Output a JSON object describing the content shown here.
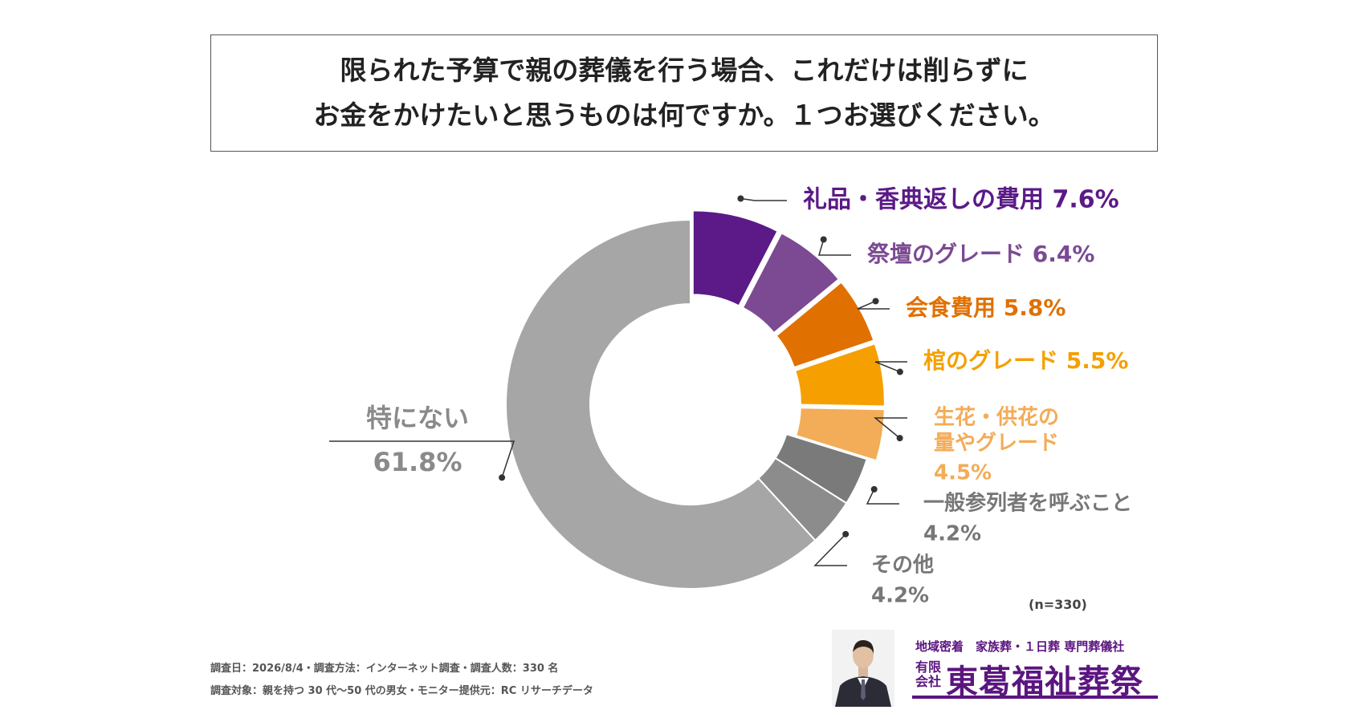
{
  "question": {
    "line1": "限られた予算で親の葬儀を行う場合、これだけは削らずに",
    "line2": "お金をかけたいと思うものは何ですか。１つお選びください。"
  },
  "chart_data": {
    "type": "pie",
    "style": "donut",
    "slices": [
      {
        "label": "礼品・香典返しの費用",
        "value": 7.6,
        "value_label": "7.6%",
        "color": "#5b1a87"
      },
      {
        "label": "祭壇のグレード",
        "value": 6.4,
        "value_label": "6.4%",
        "color": "#7b4a93"
      },
      {
        "label": "会食費用",
        "value": 5.8,
        "value_label": "5.8%",
        "color": "#e07000"
      },
      {
        "label": "棺のグレード",
        "value": 5.5,
        "value_label": "5.5%",
        "color": "#f5a000"
      },
      {
        "label": "生花・供花の量やグレード",
        "label_lines": [
          "生花・供花の",
          "量やグレード"
        ],
        "value": 4.5,
        "value_label": "4.5%",
        "color": "#f3ac57"
      },
      {
        "label": "一般参列者を呼ぶこと",
        "value": 4.2,
        "value_label": "4.2%",
        "color": "#7a7a7a"
      },
      {
        "label": "その他",
        "value": 4.2,
        "value_label": "4.2%",
        "color": "#8c8c8c"
      },
      {
        "label": "特にない",
        "value": 61.8,
        "value_label": "61.8%",
        "color": "#a6a6a6"
      }
    ]
  },
  "sample_size": "(n=330)",
  "footnotes": {
    "line1": "調査日：2026/8/4・調査方法：インターネット調査・調査人数：330 名",
    "line2": "調査対象：親を持つ 30 代〜50 代の男女・モニター提供元：RC リサーチデータ"
  },
  "brand": {
    "tagline": "地域密着　家族葬・１日葬 専門葬儀社",
    "company_type_top": "有限",
    "company_type_bottom": "会社",
    "name": "東葛福祉葬祭",
    "color": "#5b1580"
  }
}
